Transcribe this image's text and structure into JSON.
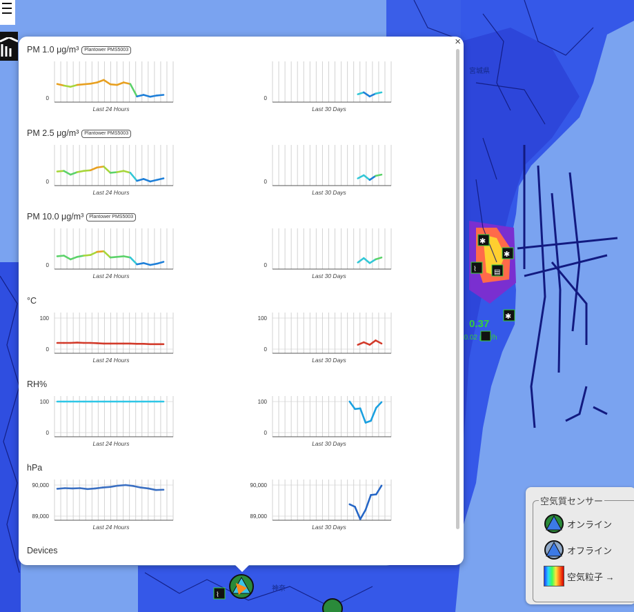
{
  "popup": {
    "close_label": "×",
    "devices_label": "Devices",
    "sections": [
      {
        "key": "pm1",
        "unit": "PM 1.0 μg/m³",
        "sensor": "Plantower PMS5003",
        "left": {
          "caption": "Last 24 Hours",
          "yticks": [
            "0"
          ],
          "color": "grad",
          "values": [
            0.45,
            0.4,
            0.36,
            0.42,
            0.44,
            0.46,
            0.5,
            0.58,
            0.44,
            0.42,
            0.5,
            0.45,
            0.05,
            0.1,
            0.04,
            0.08,
            0.1
          ]
        },
        "right": {
          "caption": "Last 30 Days",
          "yticks": [
            "0"
          ],
          "color": "grad",
          "values": [
            null,
            null,
            null,
            null,
            null,
            null,
            null,
            null,
            null,
            null,
            null,
            null,
            null,
            null,
            0.12,
            0.18,
            0.05,
            0.14,
            0.18
          ]
        }
      },
      {
        "key": "pm25",
        "unit": "PM 2.5 μg/m³",
        "sensor": "Plantower PMS5003",
        "left": {
          "caption": "Last 24 Hours",
          "yticks": [
            "0"
          ],
          "color": "grad",
          "values": [
            0.32,
            0.34,
            0.22,
            0.3,
            0.34,
            0.36,
            0.45,
            0.48,
            0.28,
            0.3,
            0.34,
            0.28,
            0.02,
            0.08,
            0,
            0.05,
            0.1
          ]
        },
        "right": {
          "caption": "Last 30 Days",
          "yticks": [
            "0"
          ],
          "color": "grad",
          "values": [
            null,
            null,
            null,
            null,
            null,
            null,
            null,
            null,
            null,
            null,
            null,
            null,
            null,
            null,
            0.1,
            0.2,
            0.05,
            0.18,
            0.22
          ]
        }
      },
      {
        "key": "pm10",
        "unit": "PM 10.0 μg/m³",
        "sensor": "Plantower PMS5003",
        "left": {
          "caption": "Last 24 Hours",
          "yticks": [
            "0"
          ],
          "color": "grad",
          "values": [
            0.28,
            0.3,
            0.18,
            0.26,
            0.3,
            0.32,
            0.42,
            0.44,
            0.24,
            0.26,
            0.28,
            0.24,
            0.02,
            0.06,
            0,
            0.04,
            0.1
          ]
        },
        "right": {
          "caption": "Last 30 Days",
          "yticks": [
            "0"
          ],
          "color": "grad",
          "values": [
            null,
            null,
            null,
            null,
            null,
            null,
            null,
            null,
            null,
            null,
            null,
            null,
            null,
            null,
            0.08,
            0.22,
            0.06,
            0.18,
            0.24
          ]
        }
      },
      {
        "key": "temp",
        "unit": "°C",
        "left": {
          "caption": "Last 24 Hours",
          "yticks": [
            "100",
            "0"
          ],
          "color": "#d23a2a",
          "values": [
            0.2,
            0.2,
            0.2,
            0.21,
            0.2,
            0.2,
            0.19,
            0.18,
            0.18,
            0.18,
            0.18,
            0.18,
            0.17,
            0.17,
            0.16,
            0.16,
            0.16
          ]
        },
        "right": {
          "caption": "Last 30 Days",
          "yticks": [
            "100",
            "0"
          ],
          "color": "#d23a2a",
          "values": [
            null,
            null,
            null,
            null,
            null,
            null,
            null,
            null,
            null,
            null,
            null,
            null,
            null,
            null,
            0.14,
            0.22,
            0.14,
            0.28,
            0.18
          ]
        }
      },
      {
        "key": "rh",
        "unit": "RH%",
        "left": {
          "caption": "Last 24 Hours",
          "yticks": [
            "100",
            "0"
          ],
          "color": "#2ec6e6",
          "values": [
            1,
            1,
            1,
            1,
            1,
            1,
            1,
            1,
            1,
            1,
            1,
            1,
            1,
            1,
            1,
            1,
            1
          ]
        },
        "right": {
          "caption": "Last 30 Days",
          "yticks": [
            "100",
            "0"
          ],
          "color": "#1aa0e0",
          "values": [
            null,
            null,
            null,
            null,
            null,
            null,
            null,
            null,
            null,
            null,
            null,
            null,
            null,
            null,
            1,
            0.76,
            0.78,
            0.32,
            0.38,
            0.8,
            0.98
          ]
        }
      },
      {
        "key": "hpa",
        "unit": "hPa",
        "left": {
          "caption": "Last 24 Hours",
          "yticks": [
            "90,000",
            "89,000"
          ],
          "color": "#3a6fc2",
          "values": [
            0.88,
            0.9,
            0.89,
            0.9,
            0.87,
            0.89,
            0.92,
            0.94,
            0.98,
            1.0,
            0.97,
            0.92,
            0.89,
            0.84,
            0.85
          ]
        },
        "right": {
          "caption": "Last 30 Days",
          "yticks": [
            "90,000",
            "89,000"
          ],
          "color": "#2566c6",
          "values": [
            null,
            null,
            null,
            null,
            null,
            null,
            null,
            null,
            null,
            null,
            null,
            null,
            null,
            null,
            0.38,
            0.3,
            -0.1,
            0.2,
            0.68,
            0.7,
            0.98
          ]
        }
      }
    ]
  },
  "map_labels": [
    {
      "text": "宮城県"
    },
    {
      "text": "神奈"
    },
    {
      "text": "0.37"
    },
    {
      "text": "±0.02 μSv/h"
    }
  ],
  "legend": {
    "title": "空気質センサー",
    "items": [
      {
        "label": "オンライン",
        "icon": "air-sensor-online-icon"
      },
      {
        "label": "オフライン",
        "icon": "air-sensor-offline-icon"
      },
      {
        "label": "空気粒子 →",
        "icon": "particle-gradient-icon"
      }
    ]
  }
}
